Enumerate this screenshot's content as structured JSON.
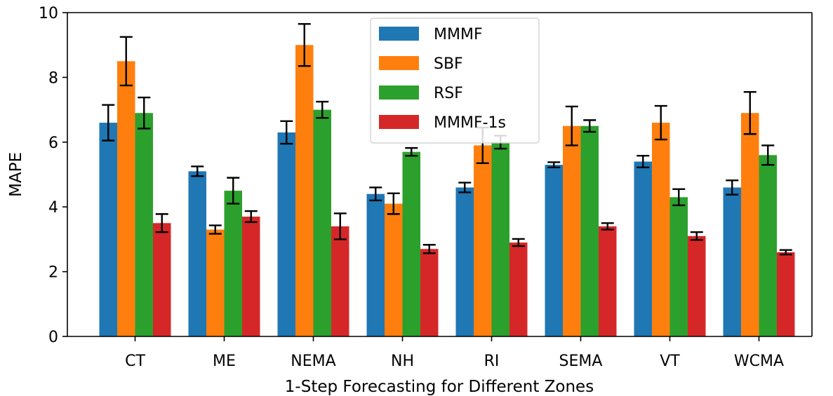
{
  "chart_data": {
    "type": "bar",
    "title": "",
    "xlabel": "1-Step Forecasting for Different Zones",
    "ylabel": "MAPE",
    "ylim": [
      0,
      10
    ],
    "yticks": [
      0,
      2,
      4,
      6,
      8,
      10
    ],
    "grid": false,
    "legend_position": "top-center",
    "categories": [
      "CT",
      "ME",
      "NEMA",
      "NH",
      "RI",
      "SEMA",
      "VT",
      "WCMA"
    ],
    "series": [
      {
        "name": "MMMF",
        "color": "#1f77b4",
        "values": [
          6.6,
          5.1,
          6.3,
          4.4,
          4.6,
          5.3,
          5.4,
          4.6
        ],
        "error": [
          0.55,
          0.15,
          0.35,
          0.2,
          0.15,
          0.08,
          0.18,
          0.22
        ]
      },
      {
        "name": "SBF",
        "color": "#ff7f0e",
        "values": [
          8.5,
          3.3,
          9.0,
          4.1,
          5.9,
          6.5,
          6.6,
          6.9
        ],
        "error": [
          0.75,
          0.13,
          0.65,
          0.32,
          0.55,
          0.6,
          0.52,
          0.65
        ]
      },
      {
        "name": "RSF",
        "color": "#2ca02c",
        "values": [
          6.9,
          4.5,
          7.0,
          5.7,
          6.0,
          6.5,
          4.3,
          5.6
        ],
        "error": [
          0.48,
          0.4,
          0.25,
          0.12,
          0.2,
          0.18,
          0.25,
          0.3
        ]
      },
      {
        "name": "MMMF-1s",
        "color": "#d62728",
        "values": [
          3.5,
          3.7,
          3.4,
          2.7,
          2.9,
          3.4,
          3.1,
          2.6
        ],
        "error": [
          0.28,
          0.17,
          0.4,
          0.13,
          0.11,
          0.1,
          0.12,
          0.07
        ]
      }
    ]
  }
}
